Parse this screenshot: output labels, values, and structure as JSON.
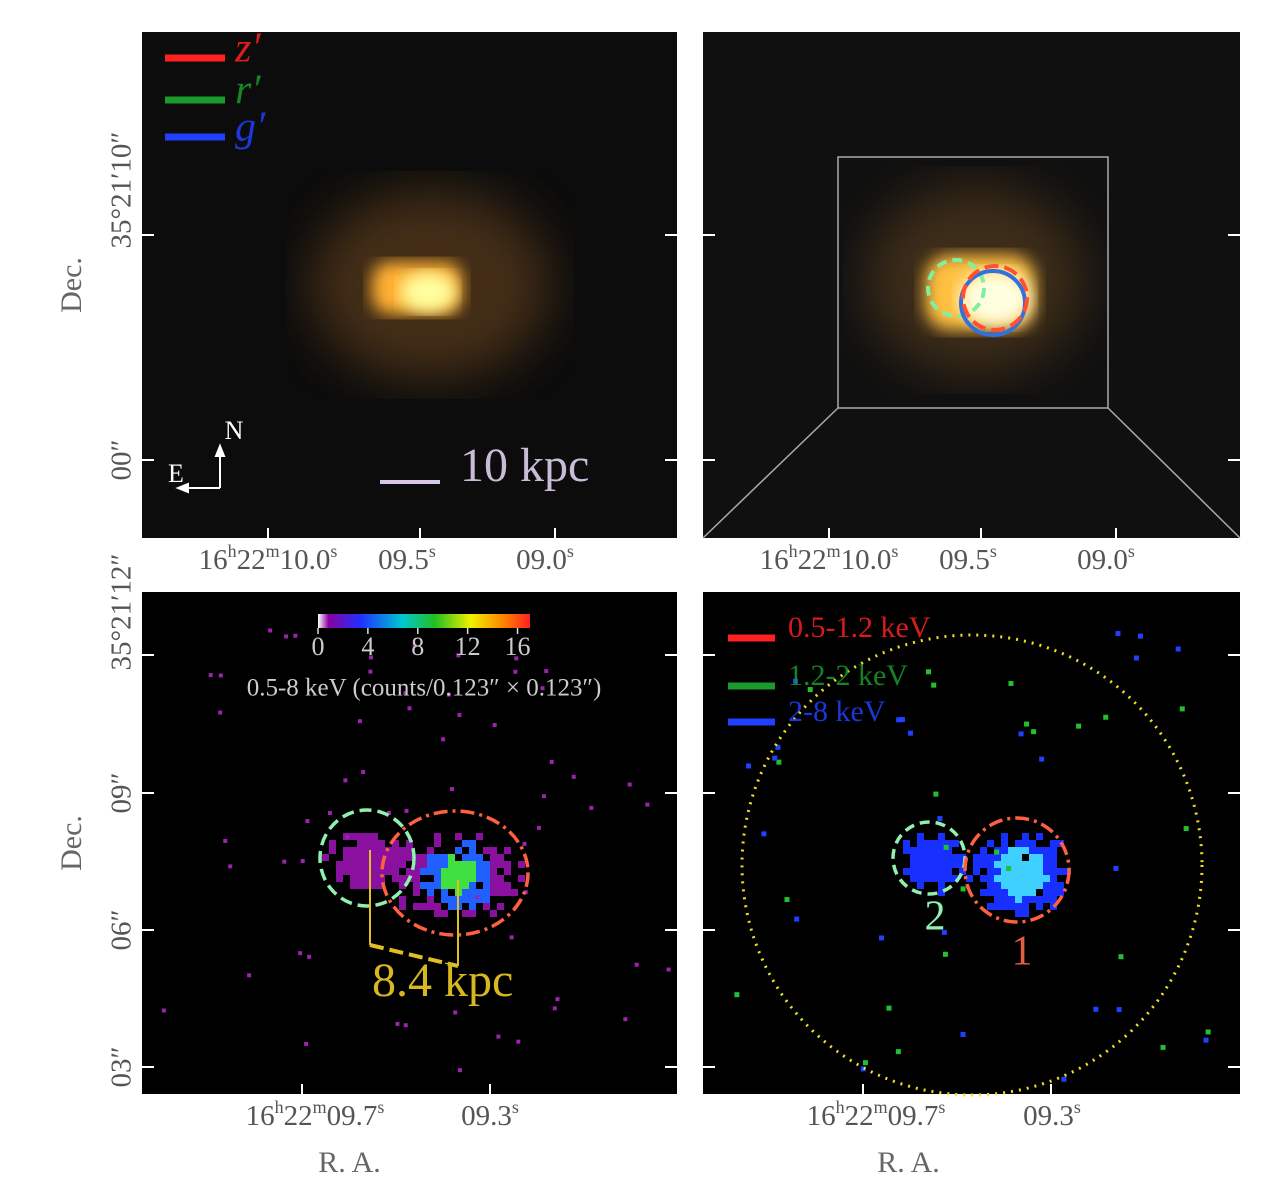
{
  "panels": [
    {
      "legend": [
        {
          "name": "z′",
          "color": "#ff2020"
        },
        {
          "name": "r′",
          "color": "#1a9a2a"
        },
        {
          "name": "g′",
          "color": "#2040ff"
        }
      ],
      "y_label": "Dec.",
      "y_ticks": [
        "35°21′10″",
        "00″"
      ],
      "x_ticks": [
        [
          "16",
          "h",
          "22",
          "m",
          "10.0",
          "s"
        ],
        [
          "09.5",
          "s"
        ],
        [
          "09.0",
          "s"
        ]
      ],
      "compass": {
        "north": "N",
        "east": "E"
      },
      "scale_bar": "10 kpc"
    },
    {
      "x_ticks": [
        [
          "16",
          "h",
          "22",
          "m",
          "10.0",
          "s"
        ],
        [
          "09.5",
          "s"
        ],
        [
          "09.0",
          "s"
        ]
      ]
    },
    {
      "y_label": "Dec.",
      "y_ticks": [
        "35°21′12″",
        "09″",
        "06″",
        "03″"
      ],
      "x_ticks": [
        [
          "16",
          "h",
          "22",
          "m",
          "09.7",
          "s"
        ],
        [
          "09.3",
          "s"
        ]
      ],
      "x_label": "R. A.",
      "colorbar": {
        "ticks": [
          0,
          4,
          8,
          12,
          16
        ],
        "range": [
          0,
          17
        ],
        "label": "0.5-8 keV (counts/0.123″ × 0.123″)"
      },
      "scale_bar": "8.4 kpc"
    },
    {
      "legend": [
        {
          "name": "0.5-1.2 keV",
          "color": "#ff2020"
        },
        {
          "name": "1.2-2 keV",
          "color": "#1a9a2a"
        },
        {
          "name": "2-8 keV",
          "color": "#2040ff"
        }
      ],
      "x_ticks": [
        [
          "16",
          "h",
          "22",
          "m",
          "09.7",
          "s"
        ],
        [
          "09.3",
          "s"
        ]
      ],
      "x_label": "R. A.",
      "regions": [
        "1",
        "2"
      ]
    }
  ]
}
